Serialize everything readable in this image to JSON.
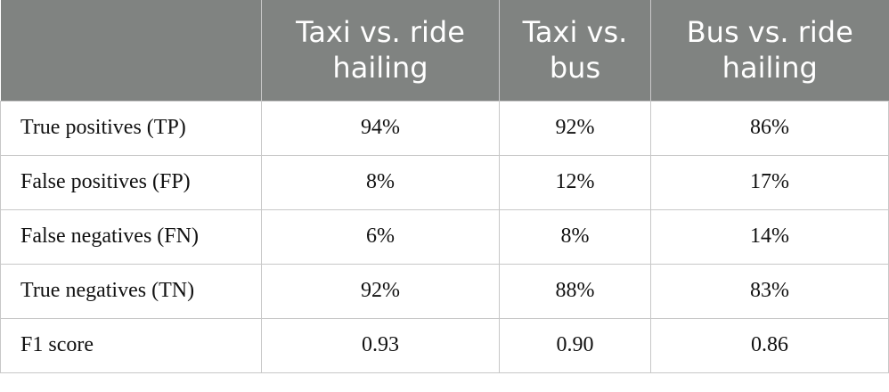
{
  "table": {
    "columns": [
      "Taxi vs. ride hailing",
      "Taxi vs. bus",
      "Bus vs. ride hailing"
    ],
    "rows": [
      [
        "True positives (TP)",
        "94%",
        "92%",
        "86%"
      ],
      [
        "False positives (FP)",
        "8%",
        "12%",
        "17%"
      ],
      [
        "False negatives (FN)",
        "6%",
        "8%",
        "14%"
      ],
      [
        "True negatives (TN)",
        "92%",
        "88%",
        "83%"
      ],
      [
        "F1 score",
        "0.93",
        "0.90",
        "0.86"
      ]
    ]
  }
}
